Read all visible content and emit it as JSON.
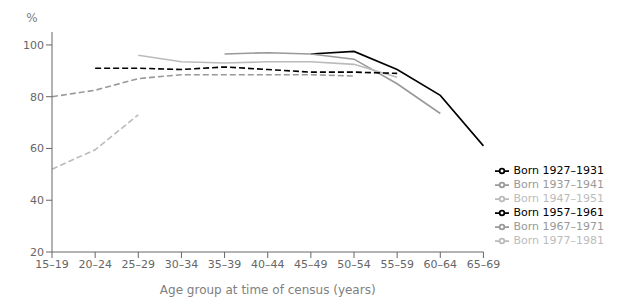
{
  "chart_data": {
    "type": "line",
    "xlabel": "Age group at time of census (years)",
    "ylabel": "%",
    "categories": [
      "15–19",
      "20–24",
      "25–29",
      "30–34",
      "35–39",
      "40–44",
      "45–49",
      "50–54",
      "55–59",
      "60–64",
      "65–69"
    ],
    "series": [
      {
        "name": "Born 1927–1931",
        "color": "#000000",
        "line_style": "solid",
        "values": [
          null,
          null,
          null,
          null,
          null,
          null,
          96.5,
          97.5,
          90.5,
          80.5,
          61.0
        ]
      },
      {
        "name": "Born 1937–1941",
        "color": "#999999",
        "line_style": "solid",
        "values": [
          null,
          null,
          null,
          null,
          96.5,
          97.0,
          96.5,
          94.5,
          85.0,
          73.5,
          null
        ]
      },
      {
        "name": "Born 1947–1951",
        "color": "#bbbbbb",
        "line_style": "solid",
        "values": [
          null,
          null,
          96.0,
          93.5,
          93.0,
          93.5,
          93.5,
          92.5,
          87.5,
          null,
          null
        ]
      },
      {
        "name": "Born 1957–1961",
        "color": "#000000",
        "line_style": "dashed",
        "values": [
          null,
          91.0,
          91.0,
          90.5,
          91.5,
          90.5,
          89.5,
          89.5,
          89.0,
          null,
          null
        ]
      },
      {
        "name": "Born 1967–1971",
        "color": "#999999",
        "line_style": "dashed",
        "values": [
          80.0,
          82.5,
          87.0,
          88.5,
          88.5,
          88.5,
          88.5,
          88.0,
          null,
          null,
          null
        ]
      },
      {
        "name": "Born 1977–1981",
        "color": "#bbbbbb",
        "line_style": "dashed",
        "values": [
          52.0,
          59.5,
          73.0,
          null,
          null,
          null,
          null,
          null,
          null,
          null,
          null
        ]
      }
    ],
    "ylim": [
      20,
      105
    ],
    "yticks": [
      20,
      40,
      60,
      80,
      100
    ],
    "grid": false,
    "legend": "lower right"
  }
}
